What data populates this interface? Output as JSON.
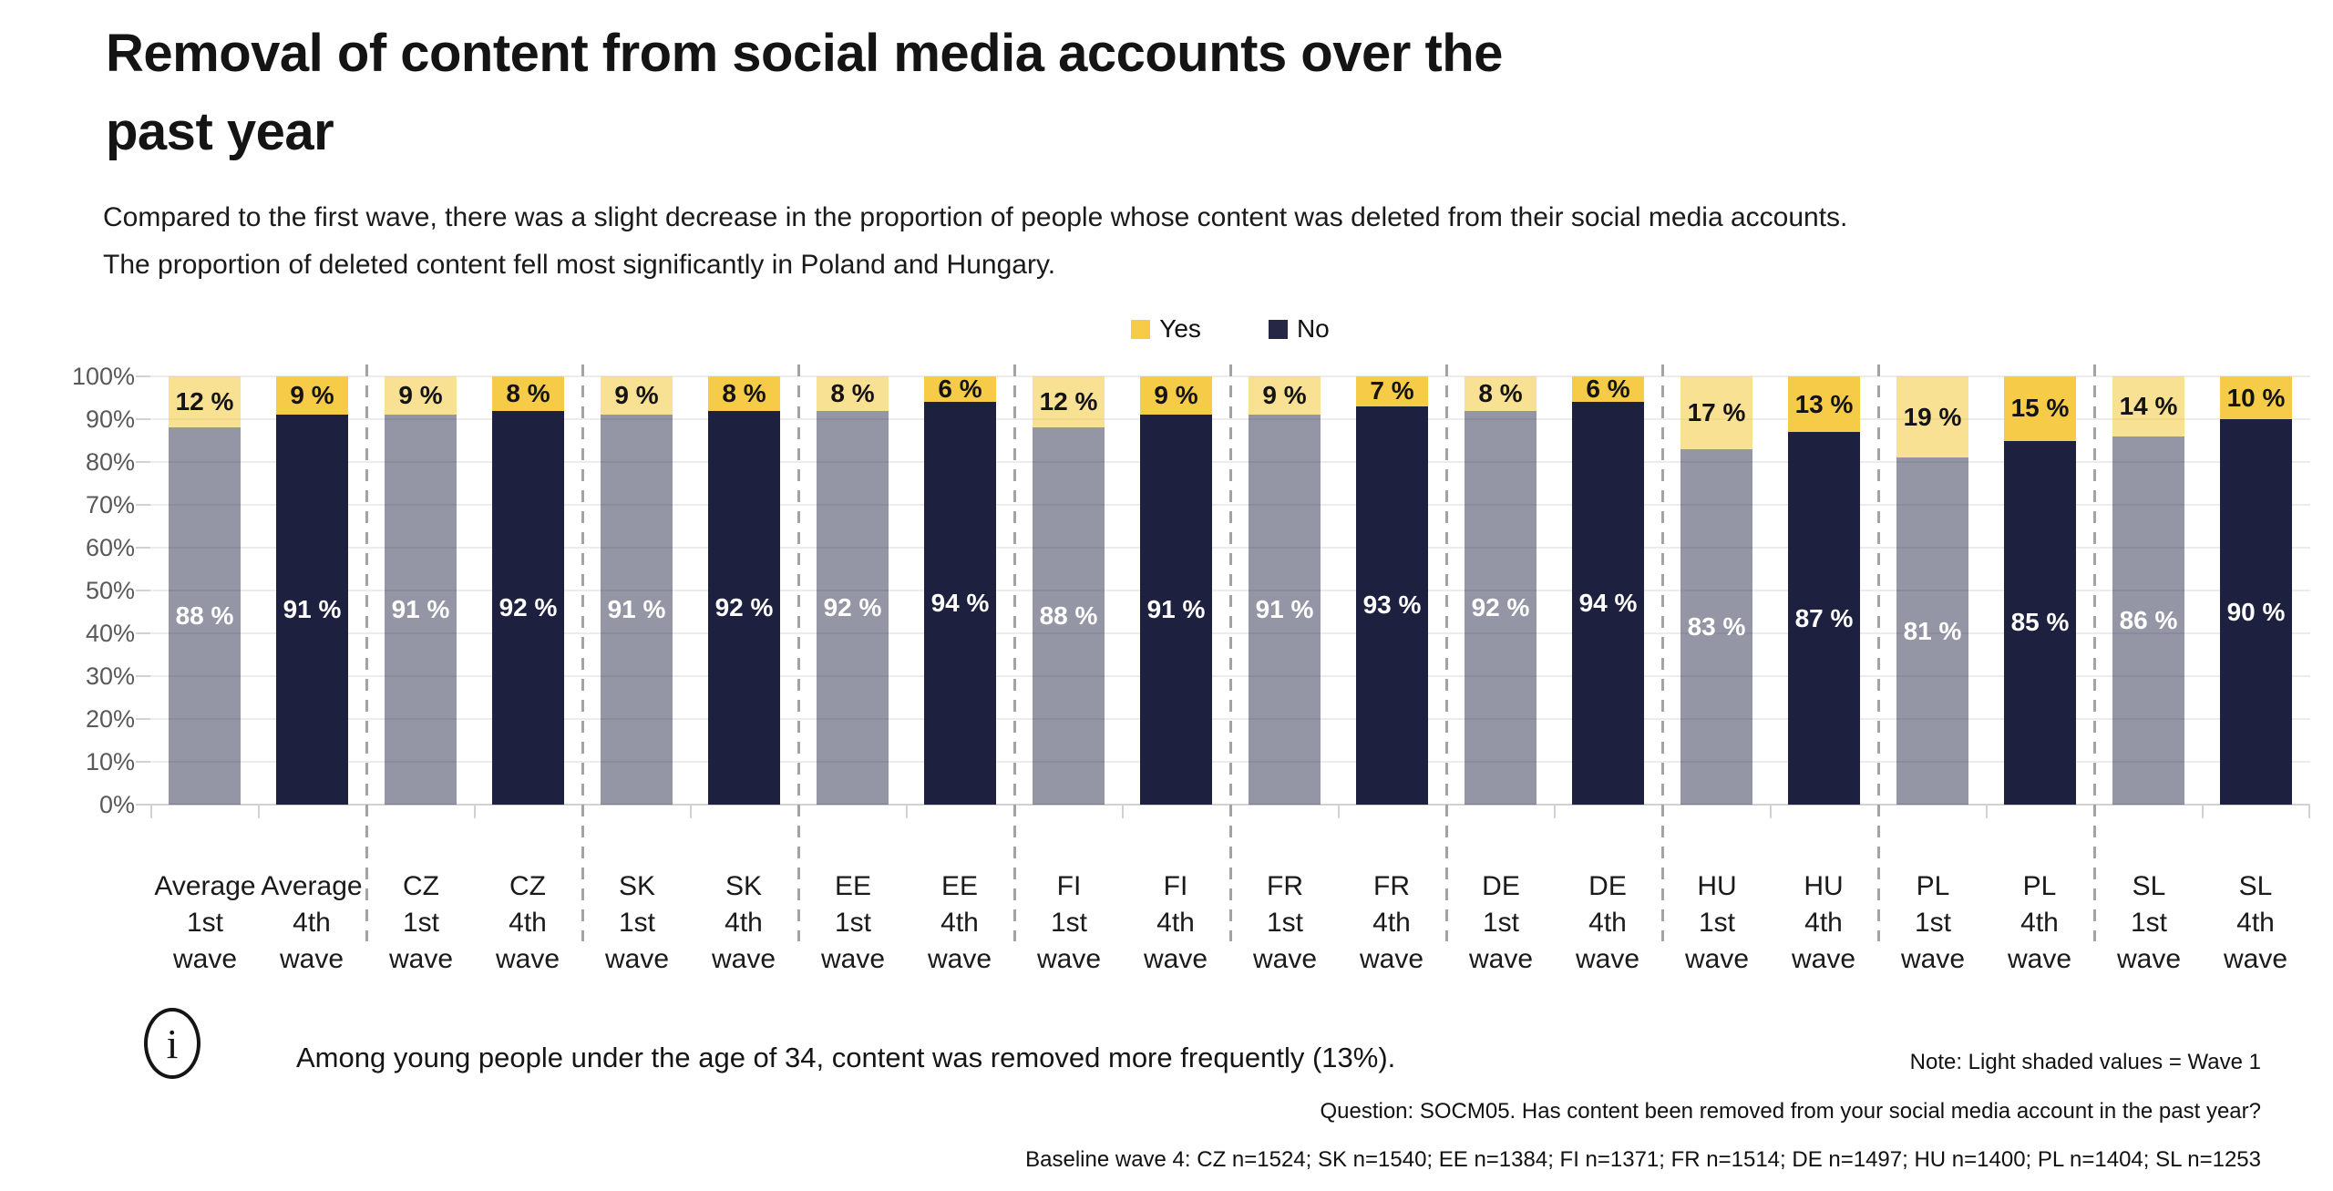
{
  "title": "Removal of content from social media accounts over the\npast year",
  "subtitle": "Compared to the first wave, there was a slight decrease in the proportion of people whose content was deleted from their social media accounts.\nThe proportion of deleted content fell most significantly in Poland and Hungary.",
  "legend": {
    "yes_label": "Yes",
    "no_label": "No"
  },
  "colors": {
    "yes_wave4": "#f5cb47",
    "yes_wave1": "rgba(245,203,71,0.58)",
    "no_wave4": "#1e2040",
    "no_wave1": "rgba(30,32,64,0.47)",
    "legend_yes": "#f5cb47",
    "legend_no": "#262645"
  },
  "chart_data": {
    "type": "bar",
    "stacked": true,
    "unit": "%",
    "ylim": [
      0,
      100
    ],
    "grid": true,
    "legend_position": "top-center",
    "y_ticks": [
      "0%",
      "10%",
      "20%",
      "30%",
      "40%",
      "50%",
      "60%",
      "70%",
      "80%",
      "90%",
      "100%"
    ],
    "series_names": [
      "Yes",
      "No"
    ],
    "note_shading": "Light shaded bars = Wave 1; solid bars = Wave 4",
    "groups": [
      {
        "country": "Average",
        "bars": [
          {
            "label": "Average\n1st\nwave",
            "shade": "light",
            "yes": 12,
            "no": 88,
            "yes_label": "12 %",
            "no_label": "88 %"
          },
          {
            "label": "Average\n4th\nwave",
            "shade": "dark",
            "yes": 9,
            "no": 91,
            "yes_label": "9 %",
            "no_label": "91 %"
          }
        ]
      },
      {
        "country": "CZ",
        "bars": [
          {
            "label": "CZ\n1st\nwave",
            "shade": "light",
            "yes": 9,
            "no": 91,
            "yes_label": "9 %",
            "no_label": "91 %"
          },
          {
            "label": "CZ\n4th\nwave",
            "shade": "dark",
            "yes": 8,
            "no": 92,
            "yes_label": "8 %",
            "no_label": "92 %"
          }
        ]
      },
      {
        "country": "SK",
        "bars": [
          {
            "label": "SK\n1st\nwave",
            "shade": "light",
            "yes": 9,
            "no": 91,
            "yes_label": "9 %",
            "no_label": "91 %"
          },
          {
            "label": "SK\n4th\nwave",
            "shade": "dark",
            "yes": 8,
            "no": 92,
            "yes_label": "8 %",
            "no_label": "92 %"
          }
        ]
      },
      {
        "country": "EE",
        "bars": [
          {
            "label": "EE\n1st\nwave",
            "shade": "light",
            "yes": 8,
            "no": 92,
            "yes_label": "8 %",
            "no_label": "92 %"
          },
          {
            "label": "EE\n4th\nwave",
            "shade": "dark",
            "yes": 6,
            "no": 94,
            "yes_label": "6 %",
            "no_label": "94 %"
          }
        ]
      },
      {
        "country": "FI",
        "bars": [
          {
            "label": "FI\n1st\nwave",
            "shade": "light",
            "yes": 12,
            "no": 88,
            "yes_label": "12 %",
            "no_label": "88 %"
          },
          {
            "label": "FI\n4th\nwave",
            "shade": "dark",
            "yes": 9,
            "no": 91,
            "yes_label": "9 %",
            "no_label": "91 %"
          }
        ]
      },
      {
        "country": "FR",
        "bars": [
          {
            "label": "FR\n1st\nwave",
            "shade": "light",
            "yes": 9,
            "no": 91,
            "yes_label": "9 %",
            "no_label": "91 %"
          },
          {
            "label": "FR\n4th\nwave",
            "shade": "dark",
            "yes": 7,
            "no": 93,
            "yes_label": "7 %",
            "no_label": "93 %"
          }
        ]
      },
      {
        "country": "DE",
        "bars": [
          {
            "label": "DE\n1st\nwave",
            "shade": "light",
            "yes": 8,
            "no": 92,
            "yes_label": "8 %",
            "no_label": "92 %"
          },
          {
            "label": "DE\n4th\nwave",
            "shade": "dark",
            "yes": 6,
            "no": 94,
            "yes_label": "6 %",
            "no_label": "94 %"
          }
        ]
      },
      {
        "country": "HU",
        "bars": [
          {
            "label": "HU\n1st\nwave",
            "shade": "light",
            "yes": 17,
            "no": 83,
            "yes_label": "17 %",
            "no_label": "83 %"
          },
          {
            "label": "HU\n4th\nwave",
            "shade": "dark",
            "yes": 13,
            "no": 87,
            "yes_label": "13 %",
            "no_label": "87 %"
          }
        ]
      },
      {
        "country": "PL",
        "bars": [
          {
            "label": "PL\n1st\nwave",
            "shade": "light",
            "yes": 19,
            "no": 81,
            "yes_label": "19 %",
            "no_label": "81 %"
          },
          {
            "label": "PL\n4th\nwave",
            "shade": "dark",
            "yes": 15,
            "no": 85,
            "yes_label": "15 %",
            "no_label": "85 %"
          }
        ]
      },
      {
        "country": "SL",
        "bars": [
          {
            "label": "SL\n1st\nwave",
            "shade": "light",
            "yes": 14,
            "no": 86,
            "yes_label": "14 %",
            "no_label": "86 %"
          },
          {
            "label": "SL\n4th\nwave",
            "shade": "dark",
            "yes": 10,
            "no": 90,
            "yes_label": "10 %",
            "no_label": "90 %"
          }
        ]
      }
    ]
  },
  "footer": {
    "info_glyph": "i",
    "callout": "Among young people under the age of 34, content was removed more frequently (13%).",
    "note_shading": "Note: Light shaded values = Wave 1",
    "note_question": "Question: SOCM05. Has content been removed from your social media account in the past year?",
    "note_baseline": "Baseline wave 4: CZ n=1524; SK n=1540; EE n=1384; FI n=1371; FR n=1514; DE n=1497; HU n=1400; PL n=1404; SL n=1253"
  }
}
